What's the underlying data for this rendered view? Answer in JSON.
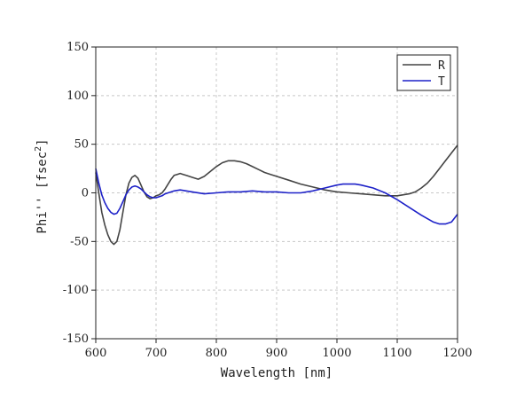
{
  "chart_data": {
    "type": "line",
    "xlabel": "Wavelength [nm]",
    "ylabel_prefix": "Phi'' [fsec",
    "ylabel_sup": "2",
    "ylabel_suffix": "]",
    "xlim": [
      600,
      1200
    ],
    "ylim": [
      -150,
      150
    ],
    "x_ticks": [
      600,
      700,
      800,
      900,
      1000,
      1100,
      1200
    ],
    "y_ticks": [
      -150,
      -100,
      -50,
      0,
      50,
      100,
      150
    ],
    "grid": true,
    "legend_position": "top-right",
    "series": [
      {
        "name": "R",
        "color": "#444444",
        "x": [
          600,
          605,
          610,
          615,
          620,
          625,
          630,
          635,
          640,
          645,
          650,
          655,
          660,
          665,
          670,
          675,
          680,
          685,
          690,
          695,
          700,
          705,
          710,
          715,
          720,
          725,
          730,
          735,
          740,
          745,
          750,
          760,
          770,
          780,
          790,
          800,
          810,
          820,
          830,
          840,
          850,
          860,
          870,
          880,
          890,
          900,
          920,
          940,
          960,
          980,
          1000,
          1020,
          1040,
          1060,
          1080,
          1100,
          1110,
          1120,
          1130,
          1140,
          1150,
          1160,
          1170,
          1180,
          1190,
          1200
        ],
        "y": [
          21,
          0,
          -20,
          -33,
          -43,
          -50,
          -53,
          -50,
          -38,
          -20,
          -2,
          10,
          16,
          18,
          15,
          8,
          1,
          -4,
          -6,
          -5,
          -3,
          -2,
          0,
          4,
          9,
          14,
          18,
          19,
          20,
          19,
          18,
          16,
          14,
          17,
          22,
          27,
          31,
          33,
          33,
          32,
          30,
          27,
          24,
          21,
          19,
          17,
          13,
          9,
          6,
          3,
          1,
          0,
          -1,
          -2,
          -3,
          -3,
          -2,
          -1,
          1,
          5,
          10,
          17,
          25,
          33,
          41,
          49
        ]
      },
      {
        "name": "T",
        "color": "#1d21c8",
        "x": [
          600,
          605,
          610,
          615,
          620,
          625,
          630,
          635,
          640,
          645,
          650,
          655,
          660,
          665,
          670,
          675,
          680,
          685,
          690,
          695,
          700,
          705,
          710,
          715,
          720,
          725,
          730,
          740,
          760,
          780,
          800,
          820,
          840,
          860,
          880,
          900,
          920,
          940,
          960,
          980,
          1000,
          1010,
          1020,
          1030,
          1040,
          1060,
          1080,
          1100,
          1120,
          1140,
          1160,
          1170,
          1180,
          1190,
          1200
        ],
        "y": [
          25,
          10,
          -2,
          -10,
          -16,
          -20,
          -22,
          -21,
          -16,
          -9,
          -2,
          3,
          6,
          7,
          6,
          4,
          1,
          -2,
          -4,
          -5,
          -5,
          -4,
          -3,
          -1,
          0,
          1,
          2,
          3,
          1,
          -1,
          0,
          1,
          1,
          2,
          1,
          1,
          0,
          0,
          2,
          5,
          8,
          9,
          9,
          9,
          8,
          5,
          0,
          -7,
          -15,
          -23,
          -30,
          -32,
          -32,
          -30,
          -22
        ]
      }
    ]
  }
}
